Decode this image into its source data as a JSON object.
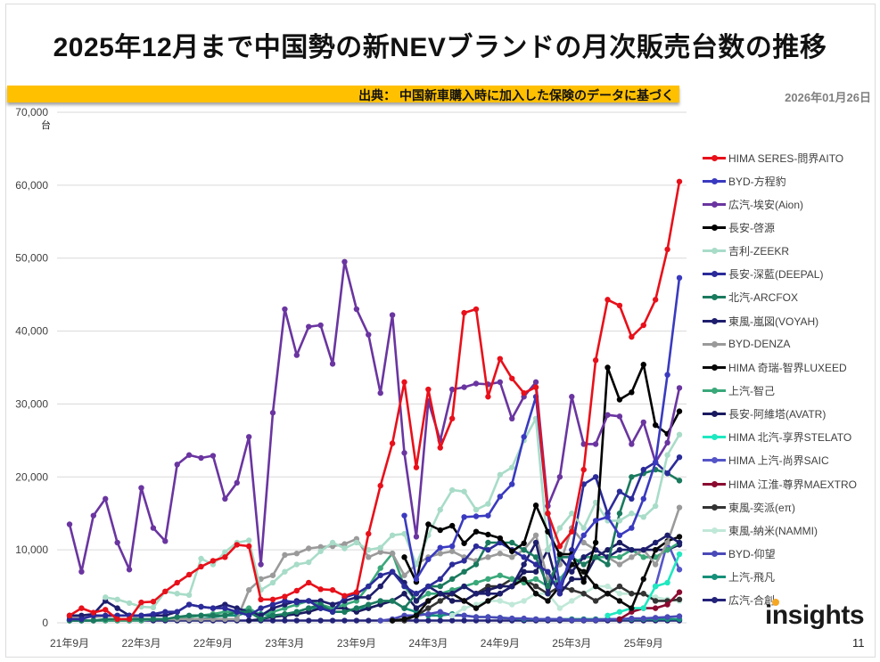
{
  "header": {
    "title": "2025年12月まで中国勢の新NEVブランドの月次販売台数の推移",
    "source": "出典： 中国新車購入時に加入した保険のデータに基づく",
    "date": "2026年01月26日",
    "source_bar_color": "#ffc000"
  },
  "footer": {
    "logo": "insights",
    "page_number": "11"
  },
  "chart_data": {
    "type": "line",
    "title": "2025年12月まで中国勢の新NEVブランドの月次販売台数の推移",
    "ylabel": "台",
    "ylim": [
      0,
      70000
    ],
    "yticks": [
      0,
      10000,
      20000,
      30000,
      40000,
      50000,
      60000,
      70000
    ],
    "ytick_labels": [
      "0",
      "10,000",
      "20,000",
      "30,000",
      "40,000",
      "50,000",
      "60,000",
      "70,000"
    ],
    "x_range": [
      "2021-09",
      "2025-12"
    ],
    "xtick_labels": [
      "21年9月",
      "22年3月",
      "22年9月",
      "23年3月",
      "23年9月",
      "24年3月",
      "24年9月",
      "25年3月",
      "25年9月"
    ],
    "grid": "horizontal",
    "legend_placement": "right",
    "series": [
      {
        "name": "HIMA SERES-問界AITO",
        "color": "#e8101a",
        "values": [
          1000,
          2000,
          1400,
          1800,
          500,
          500,
          2800,
          2900,
          4300,
          5500,
          6600,
          7700,
          8500,
          9000,
          10700,
          10500,
          3200,
          3200,
          3600,
          4400,
          5500,
          4600,
          4500,
          3700,
          4200,
          12200,
          18800,
          24600,
          33000,
          21300,
          32000,
          24000,
          28000,
          42500,
          43000,
          31000,
          36200,
          33500,
          31500,
          32300,
          15000,
          10500,
          12500,
          21000,
          36000,
          44300,
          43500,
          39200,
          40800,
          44300,
          51200,
          60500
        ]
      },
      {
        "name": "BYD-方程豹",
        "color": "#3a3ac0",
        "values": [
          null,
          null,
          null,
          null,
          null,
          null,
          null,
          null,
          null,
          null,
          null,
          null,
          null,
          null,
          null,
          null,
          null,
          null,
          null,
          null,
          null,
          null,
          null,
          null,
          null,
          null,
          null,
          null,
          14700,
          6000,
          8700,
          10300,
          10500,
          14500,
          14600,
          14700,
          17300,
          19000,
          25500,
          31000,
          15000,
          5000,
          9000,
          12000,
          14000,
          14500,
          12000,
          13000,
          17000,
          22000,
          34000,
          47300
        ]
      },
      {
        "name": "広汽-埃安(Aion)",
        "color": "#6a35a0",
        "values": [
          13500,
          7000,
          14700,
          17000,
          11000,
          7300,
          18500,
          13000,
          11200,
          21700,
          23000,
          22600,
          22900,
          17000,
          19200,
          25500,
          8000,
          28800,
          43000,
          36700,
          40600,
          40800,
          35500,
          49500,
          43000,
          39500,
          31500,
          42200,
          23300,
          11800,
          30400,
          25000,
          32000,
          32300,
          32800,
          32700,
          33000,
          28000,
          31000,
          33000,
          16000,
          20000,
          31000,
          24500,
          24500,
          28500,
          28300,
          24500,
          27500,
          22000,
          24700,
          32200
        ]
      },
      {
        "name": "長安-啓源",
        "color": "#000000",
        "values": [
          null,
          null,
          null,
          null,
          null,
          null,
          null,
          null,
          null,
          null,
          null,
          null,
          null,
          null,
          null,
          null,
          null,
          null,
          null,
          null,
          null,
          null,
          null,
          null,
          null,
          null,
          null,
          null,
          9000,
          5600,
          13500,
          12700,
          13300,
          10900,
          12500,
          12100,
          11600,
          9800,
          10900,
          16100,
          12500,
          9400,
          9400,
          5600,
          11000,
          35000,
          30600,
          31600,
          35400,
          27100,
          25900,
          29000
        ]
      },
      {
        "name": "吉利-ZEEKR",
        "color": "#a8dcc8",
        "values": [
          null,
          null,
          null,
          3500,
          3200,
          2700,
          2200,
          2100,
          4300,
          4000,
          3800,
          8800,
          8000,
          9700,
          11000,
          11300,
          4500,
          5500,
          7000,
          8000,
          8300,
          9800,
          11000,
          10200,
          11000,
          10000,
          10300,
          12000,
          12200,
          8000,
          12000,
          15500,
          18200,
          18000,
          15500,
          16300,
          20300,
          21300,
          25000,
          28000,
          10000,
          13000,
          15000,
          13000,
          16500,
          14000,
          14000,
          15000,
          14500,
          16000,
          23000,
          25800
        ]
      },
      {
        "name": "長安-深藍(DEEPAL)",
        "color": "#2b2b9a",
        "values": [
          500,
          500,
          1000,
          1000,
          1000,
          1000,
          1000,
          1200,
          1500,
          1500,
          2500,
          2200,
          2000,
          2000,
          1500,
          1000,
          2000,
          2500,
          3000,
          2800,
          3000,
          2000,
          1500,
          3500,
          4000,
          5000,
          6500,
          7000,
          5000,
          4000,
          5000,
          6000,
          8000,
          8500,
          10500,
          10000,
          11000,
          10000,
          9000,
          8000,
          7000,
          4000,
          10000,
          19000,
          20000,
          15000,
          18000,
          17000,
          21000,
          22000,
          20500,
          22700
        ]
      },
      {
        "name": "北汽-ARCFOX",
        "color": "#1a7a5e",
        "values": [
          300,
          300,
          300,
          500,
          500,
          500,
          500,
          500,
          500,
          800,
          1000,
          1000,
          1000,
          1000,
          1500,
          1500,
          500,
          1000,
          1200,
          1500,
          2000,
          2500,
          1500,
          1500,
          2000,
          2500,
          3000,
          3000,
          2000,
          4000,
          5000,
          5000,
          6000,
          7000,
          8000,
          11000,
          11000,
          11000,
          10000,
          9000,
          5000,
          9000,
          9000,
          8000,
          9000,
          8000,
          15000,
          20000,
          20500,
          21000,
          20500,
          19500
        ]
      },
      {
        "name": "東風-嵐図(VOYAH)",
        "color": "#1e1e6e",
        "values": [
          1000,
          1000,
          1200,
          3000,
          2000,
          1000,
          1000,
          1000,
          1000,
          1500,
          2500,
          2200,
          2000,
          2500,
          2000,
          1500,
          1000,
          2000,
          2500,
          3000,
          3000,
          3000,
          2500,
          3000,
          3500,
          3500,
          5000,
          7000,
          5500,
          3000,
          5000,
          4000,
          4000,
          5000,
          4000,
          4000,
          4000,
          5000,
          8000,
          11000,
          4000,
          9000,
          7000,
          9000,
          10000,
          9000,
          10000,
          10000,
          10000,
          11000,
          12000,
          11000
        ]
      },
      {
        "name": "BYD-DENZA",
        "color": "#9a9a9a",
        "values": [
          800,
          800,
          800,
          900,
          1000,
          1000,
          500,
          500,
          500,
          500,
          500,
          500,
          500,
          500,
          500,
          4500,
          6000,
          6500,
          9300,
          9500,
          10200,
          10400,
          10500,
          10800,
          11500,
          9000,
          9700,
          9500,
          6500,
          8000,
          9000,
          9500,
          9800,
          9000,
          8500,
          9000,
          9500,
          9000,
          10000,
          12000,
          6000,
          8000,
          13000,
          11000,
          10000,
          9000,
          8000,
          9000,
          10000,
          8000,
          11000,
          15800
        ]
      },
      {
        "name": "HIMA 奇瑞-智界LUXEED",
        "color": "#0a0a0a",
        "values": [
          null,
          null,
          null,
          null,
          null,
          null,
          null,
          null,
          null,
          null,
          null,
          null,
          null,
          null,
          null,
          null,
          null,
          null,
          null,
          null,
          null,
          null,
          null,
          null,
          null,
          null,
          null,
          300,
          500,
          1000,
          3000,
          4000,
          4000,
          3000,
          2000,
          3000,
          4000,
          5000,
          6000,
          4000,
          3000,
          5000,
          8000,
          7000,
          5000,
          4000,
          3000,
          2000,
          6000,
          10000,
          11200,
          11800
        ]
      },
      {
        "name": "上汽-智己",
        "color": "#3aa87a",
        "values": [
          300,
          300,
          300,
          300,
          300,
          300,
          300,
          500,
          500,
          500,
          800,
          1000,
          1200,
          1500,
          1500,
          2000,
          1000,
          1500,
          2000,
          2500,
          3000,
          2500,
          2000,
          2500,
          3000,
          5000,
          7500,
          9500,
          5000,
          3000,
          4000,
          4000,
          4500,
          5000,
          5500,
          6000,
          6500,
          6000,
          5500,
          6000,
          5000,
          6000,
          8000,
          9000,
          9000,
          9000,
          9000,
          10000,
          9000,
          9000,
          10000,
          11000
        ]
      },
      {
        "name": "長安-阿維塔(AVATR)",
        "color": "#1a1a60",
        "values": [
          null,
          null,
          null,
          null,
          null,
          null,
          null,
          null,
          null,
          null,
          null,
          null,
          null,
          null,
          null,
          300,
          500,
          800,
          1000,
          1200,
          1500,
          2000,
          2000,
          2000,
          1500,
          2000,
          2500,
          3000,
          4000,
          2000,
          3000,
          4000,
          3000,
          3000,
          4000,
          4500,
          5000,
          5000,
          7000,
          7000,
          10000,
          4000,
          6000,
          6000,
          9000,
          10000,
          11000,
          10000,
          10000,
          10000,
          10000,
          10700
        ]
      },
      {
        "name": "HIMA 北汽-享界STELATO",
        "color": "#20e8c0",
        "values": [
          null,
          null,
          null,
          null,
          null,
          null,
          null,
          null,
          null,
          null,
          null,
          null,
          null,
          null,
          null,
          null,
          null,
          null,
          null,
          null,
          null,
          null,
          null,
          null,
          null,
          null,
          null,
          null,
          null,
          null,
          null,
          null,
          null,
          null,
          null,
          null,
          null,
          null,
          null,
          null,
          null,
          null,
          null,
          null,
          null,
          1000,
          1500,
          2000,
          2000,
          5000,
          5500,
          9400
        ]
      },
      {
        "name": "HIMA 上汽-尚界SAIC",
        "color": "#5555c8",
        "values": [
          null,
          null,
          null,
          null,
          null,
          null,
          null,
          null,
          null,
          null,
          null,
          null,
          null,
          null,
          null,
          null,
          null,
          null,
          null,
          null,
          null,
          null,
          null,
          null,
          null,
          null,
          null,
          null,
          null,
          null,
          null,
          null,
          null,
          null,
          null,
          null,
          null,
          null,
          null,
          null,
          null,
          null,
          null,
          null,
          null,
          null,
          null,
          null,
          null,
          5000,
          11000,
          7300
        ]
      },
      {
        "name": "HIMA 江淮-尊界MAEXTRO",
        "color": "#8b0a30",
        "values": [
          null,
          null,
          null,
          null,
          null,
          null,
          null,
          null,
          null,
          null,
          null,
          null,
          null,
          null,
          null,
          null,
          null,
          null,
          null,
          null,
          null,
          null,
          null,
          null,
          null,
          null,
          null,
          null,
          null,
          null,
          null,
          null,
          null,
          null,
          null,
          null,
          null,
          null,
          null,
          null,
          null,
          null,
          null,
          null,
          null,
          null,
          500,
          1500,
          2000,
          2000,
          2500,
          4200
        ]
      },
      {
        "name": "東風-奕派(eπ)",
        "color": "#333333",
        "values": [
          null,
          null,
          null,
          null,
          null,
          null,
          null,
          null,
          null,
          null,
          null,
          null,
          null,
          null,
          null,
          null,
          null,
          null,
          null,
          null,
          null,
          null,
          null,
          null,
          null,
          null,
          null,
          300,
          300,
          1000,
          2000,
          3000,
          4000,
          3000,
          4000,
          5000,
          5000,
          6000,
          6000,
          5000,
          4000,
          5000,
          4500,
          4000,
          3000,
          4000,
          5000,
          4000,
          4000,
          3000,
          3000,
          3200
        ]
      },
      {
        "name": "東風-納米(NAMMI)",
        "color": "#c0e8d8",
        "values": [
          null,
          null,
          null,
          null,
          null,
          null,
          null,
          null,
          null,
          null,
          null,
          null,
          null,
          null,
          null,
          null,
          null,
          null,
          null,
          null,
          null,
          null,
          null,
          null,
          null,
          null,
          null,
          null,
          null,
          null,
          null,
          null,
          1000,
          2000,
          2500,
          3000,
          3000,
          2500,
          3000,
          4000,
          4000,
          2000,
          3000,
          4000,
          5000,
          5000,
          4000,
          4000,
          4000,
          3500,
          3200,
          3000
        ]
      },
      {
        "name": "BYD-仰望",
        "color": "#4a4ab8",
        "values": [
          null,
          null,
          null,
          null,
          null,
          null,
          null,
          null,
          null,
          null,
          null,
          null,
          null,
          null,
          null,
          null,
          null,
          null,
          null,
          null,
          null,
          null,
          null,
          null,
          null,
          null,
          300,
          500,
          1000,
          1000,
          1200,
          1500,
          1000,
          1000,
          800,
          800,
          700,
          600,
          600,
          500,
          500,
          500,
          400,
          400,
          400,
          500,
          500,
          600,
          600,
          700,
          800,
          900
        ]
      },
      {
        "name": "上汽-飛凡",
        "color": "#16907a",
        "values": [
          null,
          null,
          null,
          null,
          null,
          null,
          null,
          null,
          null,
          null,
          500,
          500,
          800,
          1000,
          1000,
          1500,
          1200,
          1000,
          1000,
          1500,
          2000,
          2000,
          1500,
          1500,
          2000,
          2000,
          2500,
          3000,
          2000,
          1500,
          1000,
          1000,
          1200,
          1000,
          800,
          800,
          700,
          600,
          500,
          500,
          500,
          500,
          500,
          500,
          500,
          500,
          500,
          500,
          500,
          500,
          500,
          500
        ]
      },
      {
        "name": "広汽-合創",
        "color": "#23237a",
        "values": [
          300,
          300,
          300,
          300,
          300,
          300,
          300,
          300,
          300,
          300,
          300,
          300,
          300,
          300,
          300,
          300,
          300,
          300,
          300,
          300,
          300,
          300,
          300,
          300,
          300,
          300,
          300,
          300,
          300,
          300,
          300,
          300,
          300,
          300,
          300,
          300,
          300,
          300,
          300,
          300,
          300,
          300,
          300,
          300,
          300,
          300,
          300,
          300,
          300,
          300,
          300,
          300
        ]
      }
    ]
  }
}
